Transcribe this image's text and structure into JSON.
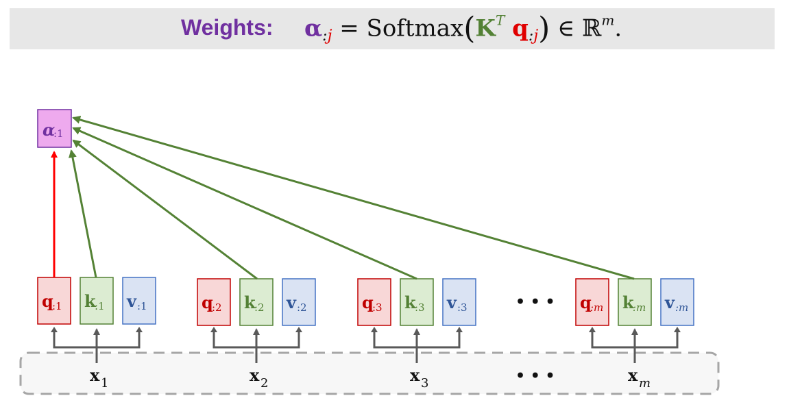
{
  "header": {
    "label": "Weights:",
    "eq_alpha": "α",
    "eq_colon": ":",
    "eq_j": "j",
    "eq_mid": " = Softmax",
    "eq_K": "K",
    "eq_T": "T",
    "eq_q": "q",
    "eq_colon2": ":",
    "eq_j2": "j",
    "eq_tail": " ∈ ℝ",
    "eq_m": "m",
    "eq_end": "."
  },
  "alpha_box": {
    "base": "α",
    "sub": ":1"
  },
  "groups": [
    {
      "q": "q",
      "k": "k",
      "v": "v",
      "sub": ":1",
      "x": "x",
      "x_sub": "1"
    },
    {
      "q": "q",
      "k": "k",
      "v": "v",
      "sub": ":2",
      "x": "x",
      "x_sub": "2"
    },
    {
      "q": "q",
      "k": "k",
      "v": "v",
      "sub": ":3",
      "x": "x",
      "x_sub": "3"
    },
    {
      "q": "q",
      "k": "k",
      "v": "v",
      "sub": ":m",
      "x": "x",
      "x_sub": "m"
    }
  ],
  "ellipsis": "• • •",
  "colors": {
    "query_border": "#c00000",
    "query_fill": "#f8d7d7",
    "query_text": "#c00000",
    "key_border": "#538135",
    "key_fill": "#dcecd2",
    "key_text": "#538135",
    "value_border": "#4472c4",
    "value_fill": "#dae3f3",
    "value_text": "#2f5597",
    "alpha_fill": "#eeaaee",
    "alpha_border": "#7030a0",
    "alpha_text": "#7030a0",
    "red_arrow": "#ff0000",
    "green_arrow": "#548235",
    "gray_arrow": "#595959",
    "dashed_border": "#a6a6a6",
    "dashed_fill": "#f7f7f7"
  }
}
